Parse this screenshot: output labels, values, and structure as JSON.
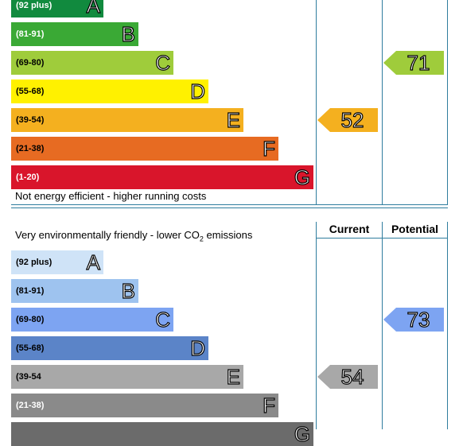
{
  "chart_data": [
    {
      "type": "bar",
      "chart": "energy-efficiency-rating",
      "bands": [
        {
          "range": "(92 plus)",
          "letter": "A",
          "color": "#118a3e",
          "text_color": "#ffffff"
        },
        {
          "range": "(81-91)",
          "letter": "B",
          "color": "#3aa935",
          "text_color": "#ffffff"
        },
        {
          "range": "(69-80)",
          "letter": "C",
          "color": "#9fcc3b",
          "text_color": "#000000"
        },
        {
          "range": "(55-68)",
          "letter": "D",
          "color": "#fff100",
          "text_color": "#000000"
        },
        {
          "range": "(39-54)",
          "letter": "E",
          "color": "#f4b01f",
          "text_color": "#000000"
        },
        {
          "range": "(21-38)",
          "letter": "F",
          "color": "#e76b22",
          "text_color": "#000000"
        },
        {
          "range": "(1-20)",
          "letter": "G",
          "color": "#d9152b",
          "text_color": "#ffffff"
        }
      ],
      "bottom_caption": "Not energy efficient - higher running costs",
      "current": {
        "value": 52,
        "band": "E",
        "color": "#f4b01f"
      },
      "potential": {
        "value": 71,
        "band": "C",
        "color": "#9fcc3b"
      }
    },
    {
      "type": "bar",
      "chart": "environmental-impact-rating",
      "column_headers": {
        "current": "Current",
        "potential": "Potential"
      },
      "top_caption_before": "Very environmentally friendly - lower CO",
      "top_caption_sub": "2",
      "top_caption_after": " emissions",
      "bands": [
        {
          "range": "(92 plus)",
          "letter": "A",
          "color": "#cfe3f7",
          "text_color": "#000000"
        },
        {
          "range": "(81-91)",
          "letter": "B",
          "color": "#9ec3ef",
          "text_color": "#000000"
        },
        {
          "range": "(69-80)",
          "letter": "C",
          "color": "#7da4f2",
          "text_color": "#000000"
        },
        {
          "range": "(55-68)",
          "letter": "D",
          "color": "#5b84c8",
          "text_color": "#000000"
        },
        {
          "range": "(39-54",
          "letter": "E",
          "color": "#a8a8a8",
          "text_color": "#000000"
        },
        {
          "range": "(21-38)",
          "letter": "F",
          "color": "#8a8a8a",
          "text_color": "#ffffff"
        },
        {
          "range": "",
          "letter": "G",
          "color": "#6b6b6b",
          "text_color": "#ffffff"
        }
      ],
      "current": {
        "value": 54,
        "band": "E",
        "color": "#a8a8a8"
      },
      "potential": {
        "value": 73,
        "band": "C",
        "color": "#7da4f2"
      }
    }
  ]
}
